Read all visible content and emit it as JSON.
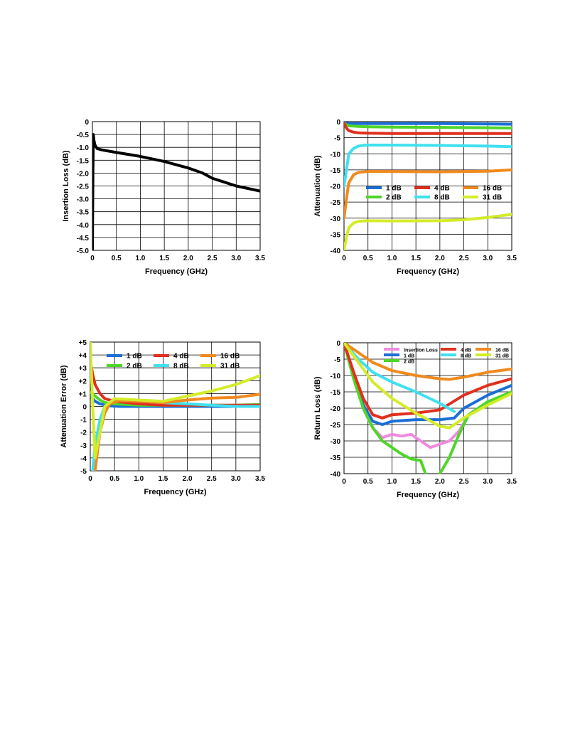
{
  "chart_data": [
    {
      "type": "line",
      "xlabel": "Frequency (GHz)",
      "ylabel": "Insertion Loss (dB)",
      "xlim": [
        0,
        3.5
      ],
      "ylim": [
        -5.0,
        0
      ],
      "xticks": [
        "0",
        "0.5",
        "1.0",
        "1.5",
        "2.0",
        "2.5",
        "3.0",
        "3.5"
      ],
      "yticks": [
        "0",
        "-0.5",
        "-1.0",
        "-1.5",
        "-2.0",
        "-2.5",
        "-3.0",
        "-3.5",
        "-4.0",
        "-4.5",
        "-5.0"
      ],
      "grid": true,
      "legend": [],
      "series": [
        {
          "color": "#000000",
          "x": [
            0,
            0.01,
            0.02,
            0.03,
            0.05,
            0.1,
            0.2,
            0.5,
            1.0,
            1.5,
            2.0,
            2.3,
            2.5,
            3.0,
            3.5
          ],
          "y": [
            -5.0,
            -2.0,
            -0.5,
            -0.7,
            -0.9,
            -1.05,
            -1.1,
            -1.2,
            -1.35,
            -1.55,
            -1.8,
            -2.0,
            -2.2,
            -2.5,
            -2.7
          ]
        }
      ]
    },
    {
      "type": "line",
      "xlabel": "Frequency (GHz)",
      "ylabel": "Attenuation (dB)",
      "xlim": [
        0,
        3.5
      ],
      "ylim": [
        -40,
        0
      ],
      "xticks": [
        "0",
        "0.5",
        "1.0",
        "1.5",
        "2.0",
        "2.5",
        "3.0",
        "3.5"
      ],
      "yticks": [
        "0",
        "-5",
        "-10",
        "-15",
        "-20",
        "-25",
        "-30",
        "-35",
        "-40"
      ],
      "grid": true,
      "legend_position": "center-right",
      "legend": [
        "1 dB",
        "4 dB",
        "16 dB",
        "2 dB",
        "8 dB",
        "31 dB"
      ],
      "series": [
        {
          "name": "1 dB",
          "color": "#1a6fd6",
          "x": [
            0,
            0.05,
            0.1,
            0.5,
            1.0,
            2.0,
            3.0,
            3.5
          ],
          "y": [
            -0.3,
            -0.5,
            -0.6,
            -0.6,
            -0.6,
            -0.6,
            -0.7,
            -0.8
          ]
        },
        {
          "name": "2 dB",
          "color": "#4fd62a",
          "x": [
            0,
            0.05,
            0.1,
            0.3,
            0.5,
            1.0,
            2.0,
            3.0,
            3.5
          ],
          "y": [
            -0.5,
            -1.0,
            -1.3,
            -1.5,
            -1.6,
            -1.7,
            -1.8,
            -1.9,
            -2.0
          ]
        },
        {
          "name": "4 dB",
          "color": "#e0301e",
          "x": [
            0,
            0.05,
            0.1,
            0.2,
            0.3,
            0.5,
            1.0,
            2.0,
            3.0,
            3.5
          ],
          "y": [
            -0.5,
            -2.0,
            -2.8,
            -3.3,
            -3.5,
            -3.6,
            -3.7,
            -3.7,
            -3.7,
            -3.7
          ]
        },
        {
          "name": "8 dB",
          "color": "#40e0f0",
          "x": [
            0,
            0.05,
            0.1,
            0.2,
            0.3,
            0.4,
            0.5,
            1.0,
            2.0,
            3.0,
            3.5
          ],
          "y": [
            -20,
            -15,
            -10,
            -8.3,
            -7.6,
            -7.4,
            -7.3,
            -7.3,
            -7.4,
            -7.6,
            -7.8
          ]
        },
        {
          "name": "16 dB",
          "color": "#f08a1e",
          "x": [
            0,
            0.05,
            0.1,
            0.2,
            0.3,
            0.5,
            1.0,
            2.0,
            3.0,
            3.5
          ],
          "y": [
            -30,
            -24,
            -19,
            -16.5,
            -15.8,
            -15.5,
            -15.5,
            -15.6,
            -15.4,
            -15.0
          ]
        },
        {
          "name": "31 dB",
          "color": "#d4ec28",
          "x": [
            0,
            0.05,
            0.1,
            0.2,
            0.3,
            0.5,
            1.0,
            2.0,
            2.5,
            3.0,
            3.5
          ],
          "y": [
            -40,
            -36,
            -33,
            -31.5,
            -31,
            -30.8,
            -30.9,
            -30.8,
            -30.5,
            -29.8,
            -28.8
          ]
        }
      ]
    },
    {
      "type": "line",
      "xlabel": "Frequency (GHz)",
      "ylabel": "Attenuation Error (dB)",
      "xlim": [
        0,
        3.5
      ],
      "ylim": [
        -5,
        5
      ],
      "xticks": [
        "0",
        "0.5",
        "1.0",
        "1.5",
        "2.0",
        "2.5",
        "3.0",
        "3.5"
      ],
      "yticks": [
        "+5",
        "+4",
        "+3",
        "+2",
        "+1",
        "0",
        "-1",
        "-2",
        "-3",
        "-4",
        "-5"
      ],
      "grid": true,
      "legend_position": "top",
      "legend": [
        "1 dB",
        "4 dB",
        "16 dB",
        "2 dB",
        "8 dB",
        "31 dB"
      ],
      "series": [
        {
          "name": "1 dB",
          "color": "#1a6fd6",
          "x": [
            0,
            0.05,
            0.1,
            0.2,
            0.4,
            0.6,
            1.0,
            2.0,
            3.0,
            3.5
          ],
          "y": [
            0.8,
            0.6,
            0.4,
            0.2,
            0.05,
            0.0,
            0.0,
            0.0,
            0.0,
            0.05
          ]
        },
        {
          "name": "2 dB",
          "color": "#4fd62a",
          "x": [
            0,
            0.05,
            0.1,
            0.2,
            0.3,
            0.5,
            1.0,
            2.0,
            3.0,
            3.5
          ],
          "y": [
            1.1,
            1.0,
            0.8,
            0.5,
            0.3,
            0.2,
            0.1,
            0.1,
            0.1,
            0.15
          ]
        },
        {
          "name": "4 dB",
          "color": "#e0301e",
          "x": [
            0,
            0.05,
            0.1,
            0.2,
            0.3,
            0.5,
            1.0,
            1.5,
            2.0,
            3.0,
            3.5
          ],
          "y": [
            3.5,
            2.5,
            1.7,
            1.0,
            0.6,
            0.4,
            0.2,
            0.1,
            0.1,
            0.1,
            0.1
          ]
        },
        {
          "name": "8 dB",
          "color": "#40e0f0",
          "x": [
            0.05,
            0.1,
            0.2,
            0.3,
            0.5,
            0.7,
            1.0,
            1.5,
            2.0,
            2.5,
            3.0,
            3.5
          ],
          "y": [
            -5.0,
            -3.0,
            -1.0,
            0.0,
            0.5,
            0.5,
            0.4,
            0.3,
            0.2,
            0.1,
            0.0,
            0.0
          ]
        },
        {
          "name": "16 dB",
          "color": "#f08a1e",
          "x": [
            0.1,
            0.15,
            0.2,
            0.3,
            0.4,
            0.6,
            1.0,
            1.5,
            2.0,
            2.5,
            3.0,
            3.5
          ],
          "y": [
            -5.0,
            -3.5,
            -2.0,
            -0.5,
            0.2,
            0.45,
            0.4,
            0.3,
            0.5,
            0.65,
            0.7,
            0.95
          ]
        },
        {
          "name": "31 dB",
          "color": "#d4ec28",
          "x": [
            0,
            0.05,
            0.1,
            0.2,
            0.3,
            0.5,
            1.0,
            1.5,
            2.0,
            2.5,
            3.0,
            3.5
          ],
          "y": [
            5.0,
            0.0,
            -4.0,
            -2.0,
            0.0,
            0.6,
            0.5,
            0.4,
            0.8,
            1.2,
            1.7,
            2.4
          ]
        }
      ]
    },
    {
      "type": "line",
      "xlabel": "Frequency (GHz)",
      "ylabel": "Return Loss (dB)",
      "xlim": [
        0,
        3.5
      ],
      "ylim": [
        -40,
        0
      ],
      "xticks": [
        "0",
        "0.5",
        "1.0",
        "1.5",
        "2.0",
        "2.5",
        "3.0",
        "3.5"
      ],
      "yticks": [
        "0",
        "-5",
        "-10",
        "-15",
        "-20",
        "-25",
        "-30",
        "-35",
        "-40"
      ],
      "grid": true,
      "legend_position": "top-right",
      "legend": [
        "Insertion Loss",
        "1 dB",
        "2 dB",
        "4 dB",
        "8 dB",
        "16 dB",
        "31 dB"
      ],
      "series": [
        {
          "name": "Insertion Loss",
          "color": "#f08ae0",
          "x": [
            0,
            0.2,
            0.4,
            0.6,
            0.8,
            1.0,
            1.2,
            1.4,
            1.6,
            1.8,
            2.0,
            2.2,
            2.4,
            2.6
          ],
          "y": [
            0,
            -10,
            -20,
            -26,
            -29,
            -28,
            -28.5,
            -28,
            -30,
            -32,
            -31,
            -30,
            -27,
            -22
          ]
        },
        {
          "name": "1 dB",
          "color": "#1a6fd6",
          "x": [
            0,
            0.2,
            0.4,
            0.6,
            0.8,
            1.0,
            1.5,
            2.0,
            2.3,
            2.5,
            3.0,
            3.5
          ],
          "y": [
            0,
            -10,
            -19,
            -24,
            -25,
            -24,
            -23.5,
            -23.5,
            -23,
            -20,
            -16,
            -13
          ]
        },
        {
          "name": "2 dB",
          "color": "#4fd62a",
          "x": [
            0,
            0.2,
            0.4,
            0.6,
            0.8,
            1.0,
            1.2,
            1.4,
            1.6,
            1.7,
            1.8,
            2.0,
            2.2,
            2.4,
            2.6,
            3.0,
            3.5
          ],
          "y": [
            0,
            -11,
            -20,
            -26,
            -30,
            -32,
            -34,
            -35.5,
            -36,
            -40,
            -42,
            -40,
            -35,
            -28,
            -22,
            -18,
            -15
          ]
        },
        {
          "name": "4 dB",
          "color": "#e0301e",
          "x": [
            0,
            0.2,
            0.4,
            0.6,
            0.8,
            1.0,
            1.5,
            2.0,
            2.5,
            3.0,
            3.5
          ],
          "y": [
            0,
            -9,
            -17,
            -22,
            -23,
            -22,
            -21.5,
            -20.5,
            -16,
            -13,
            -11
          ]
        },
        {
          "name": "8 dB",
          "color": "#40e0f0",
          "x": [
            0,
            0.3,
            0.6,
            1.0,
            1.5,
            2.0,
            2.3
          ],
          "y": [
            0,
            -5,
            -9,
            -12,
            -15,
            -18.5,
            -21
          ]
        },
        {
          "name": "16 dB",
          "color": "#f08a1e",
          "x": [
            0,
            0.3,
            0.6,
            1.0,
            1.5,
            2.0,
            2.2,
            2.5,
            3.0,
            3.5
          ],
          "y": [
            0,
            -3,
            -6,
            -8.5,
            -10,
            -11,
            -11.2,
            -10.5,
            -9,
            -8
          ]
        },
        {
          "name": "31 dB",
          "color": "#d4ec28",
          "x": [
            0,
            0.3,
            0.6,
            1.0,
            1.5,
            2.0,
            2.2,
            2.5,
            3.0,
            3.5
          ],
          "y": [
            0,
            -6,
            -12,
            -17,
            -21.5,
            -25.5,
            -26,
            -23,
            -19,
            -15.5
          ]
        }
      ]
    }
  ]
}
